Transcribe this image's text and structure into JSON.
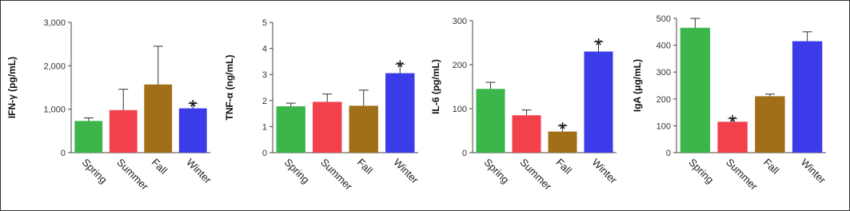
{
  "chart_data": [
    {
      "type": "bar",
      "y_label": "IFN-γ (pg/mL)",
      "categories": [
        "Spring",
        "Summer",
        "Fall",
        "Winter"
      ],
      "values": [
        730,
        980,
        1570,
        1020
      ],
      "errors": [
        70,
        480,
        880,
        110
      ],
      "significance": [
        null,
        null,
        null,
        "*"
      ],
      "colors": [
        "#3cb54a",
        "#f2404c",
        "#a06f18",
        "#3b3bea"
      ],
      "ylim": [
        0,
        3000
      ],
      "yticks": [
        0,
        {
          "value": 1000,
          "label": "1,000"
        },
        {
          "value": 2000,
          "label": "2,000"
        },
        {
          "value": 3000,
          "label": "3,000"
        }
      ]
    },
    {
      "type": "bar",
      "y_label": "TNF-α (ng/mL)",
      "categories": [
        "Spring",
        "Summer",
        "Fall",
        "Winter"
      ],
      "values": [
        1.78,
        1.95,
        1.8,
        3.05
      ],
      "errors": [
        0.12,
        0.3,
        0.6,
        0.35
      ],
      "significance": [
        null,
        null,
        null,
        "*"
      ],
      "colors": [
        "#3cb54a",
        "#f2404c",
        "#a06f18",
        "#3b3bea"
      ],
      "ylim": [
        0,
        5
      ],
      "yticks": [
        0,
        1,
        2,
        3,
        4,
        5
      ]
    },
    {
      "type": "bar",
      "y_label": "IL-6 (pg/mL)",
      "categories": [
        "Spring",
        "Summer",
        "Fall",
        "Winter"
      ],
      "values": [
        145,
        85,
        48,
        230
      ],
      "errors": [
        15,
        12,
        13,
        22
      ],
      "significance": [
        null,
        null,
        "*",
        "*"
      ],
      "colors": [
        "#3cb54a",
        "#f2404c",
        "#a06f18",
        "#3b3bea"
      ],
      "ylim": [
        0,
        300
      ],
      "yticks": [
        0,
        100,
        200,
        300
      ]
    },
    {
      "type": "bar",
      "y_label": "IgA (μg/mL)",
      "categories": [
        "Spring",
        "Summer",
        "Fall",
        "Winter"
      ],
      "values": [
        465,
        115,
        210,
        415
      ],
      "errors": [
        35,
        12,
        8,
        35
      ],
      "significance": [
        null,
        "*",
        null,
        null
      ],
      "colors": [
        "#3cb54a",
        "#f2404c",
        "#a06f18",
        "#3b3bea"
      ],
      "ylim": [
        0,
        500
      ],
      "yticks": [
        0,
        100,
        200,
        300,
        400,
        500
      ]
    }
  ]
}
